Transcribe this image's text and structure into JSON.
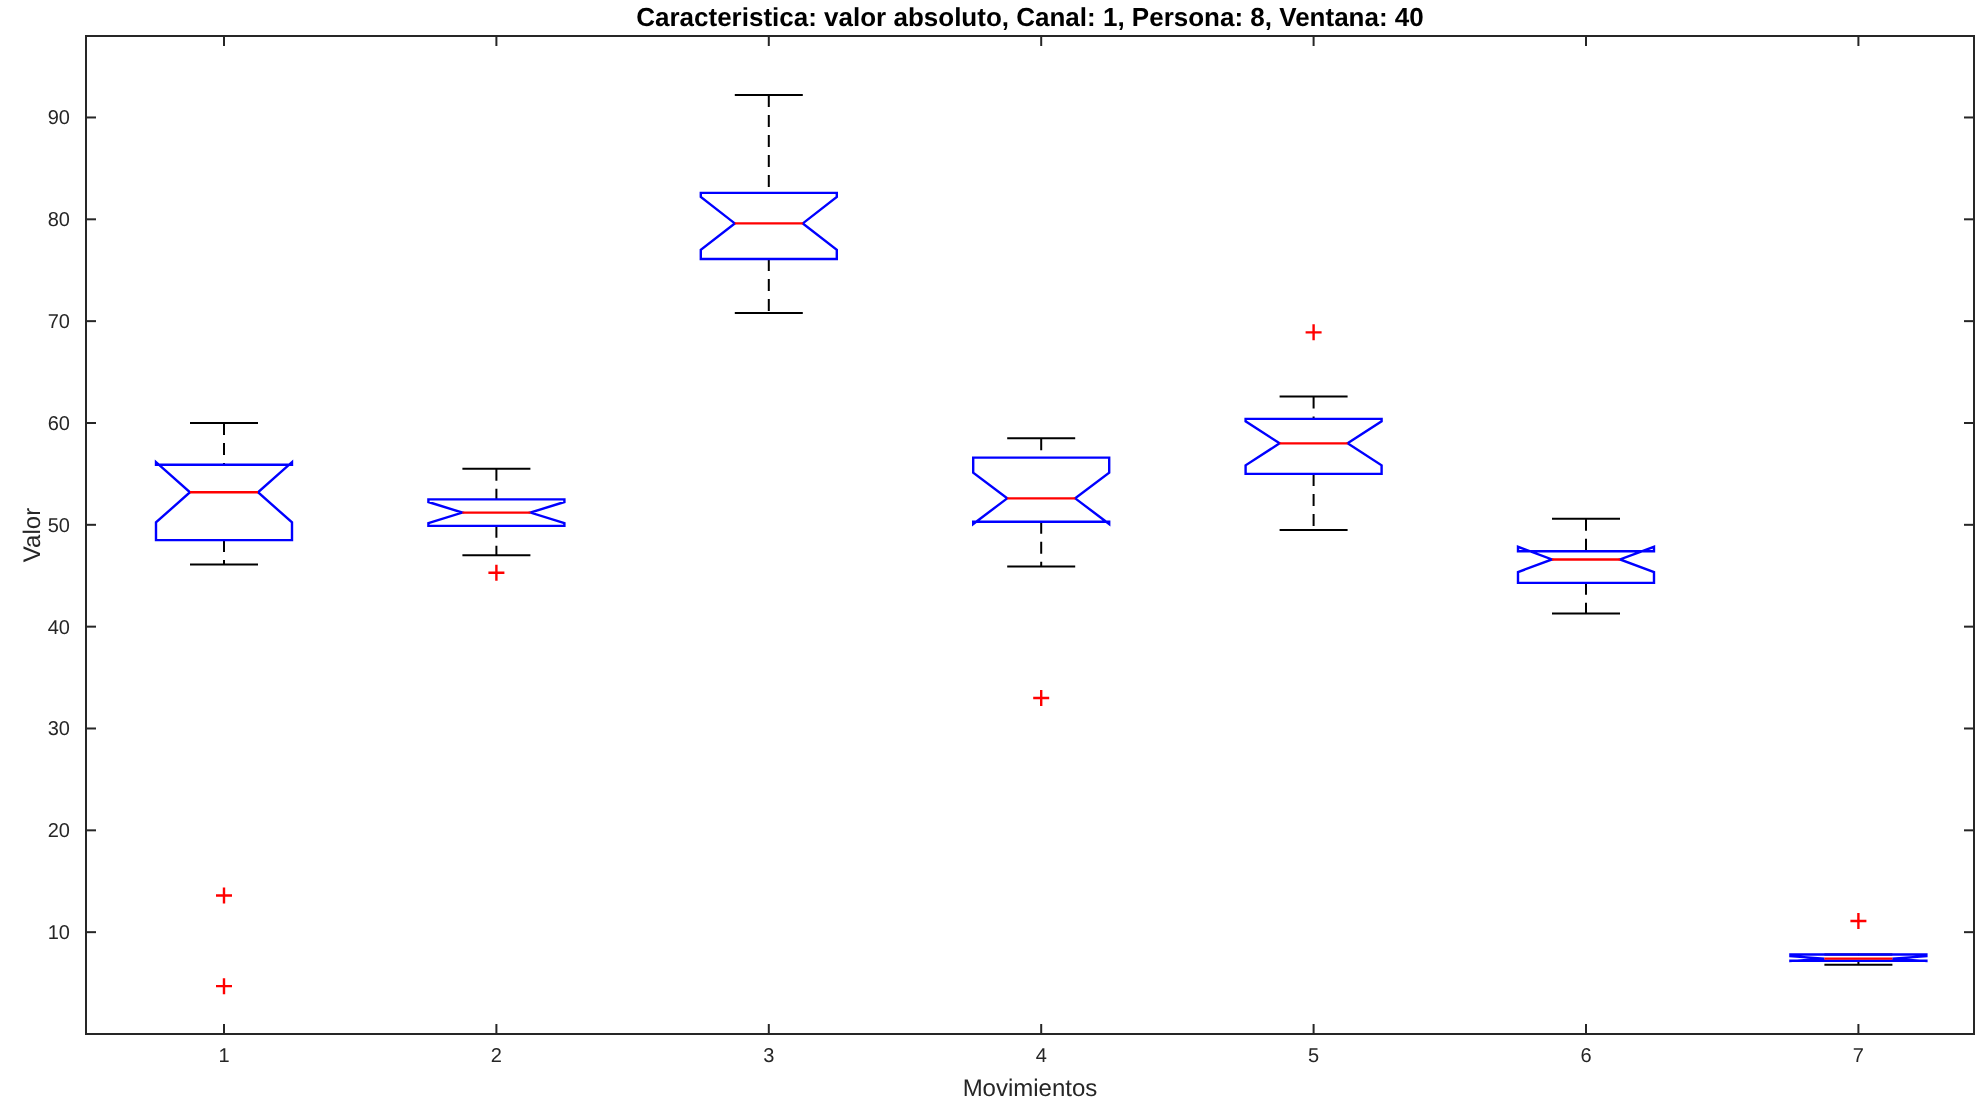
{
  "chart_data": {
    "type": "box",
    "title": "Caracteristica: valor absoluto, Canal: 1, Persona: 8, Ventana: 40",
    "xlabel": "Movimientos",
    "ylabel": "Valor",
    "categories": [
      "1",
      "2",
      "3",
      "4",
      "5",
      "6",
      "7"
    ],
    "color": "#0000ff",
    "marker": "cross",
    "boxes": [
      {
        "low": 46.1,
        "q1": 48.5,
        "median": 53.2,
        "q3": 55.9,
        "high": 60.0,
        "outliers": [
          13.6,
          4.7
        ]
      },
      {
        "low": 47.0,
        "q1": 49.9,
        "median": 51.2,
        "q3": 52.5,
        "high": 55.5,
        "outliers": [
          45.3
        ]
      },
      {
        "low": 70.8,
        "q1": 76.1,
        "median": 79.6,
        "q3": 82.6,
        "high": 92.2
      },
      {
        "low": 45.9,
        "q1": 50.3,
        "median": 52.6,
        "q3": 56.6,
        "high": 58.5,
        "outliers": [
          33.0
        ]
      },
      {
        "low": 49.5,
        "q1": 55.0,
        "median": 58.0,
        "q3": 60.4,
        "high": 62.6,
        "outliers": [
          68.9
        ]
      },
      {
        "low": 41.3,
        "q1": 44.3,
        "median": 46.6,
        "q3": 47.4,
        "high": 50.6
      },
      {
        "low": 6.8,
        "q1": 7.2,
        "median": 7.4,
        "q3": 7.8,
        "high": 7.8,
        "outliers": [
          11.1
        ]
      }
    ],
    "ylim": [
      0,
      98
    ],
    "yticks": [
      10,
      20,
      30,
      40,
      50,
      60,
      70,
      80,
      90
    ]
  }
}
